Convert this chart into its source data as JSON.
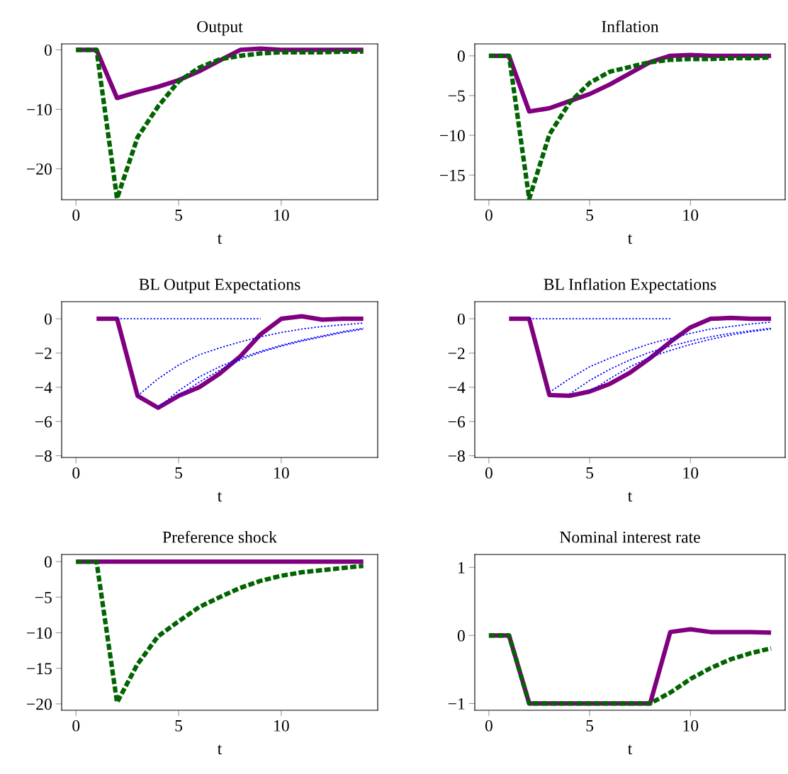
{
  "chart_data": [
    {
      "type": "line",
      "title": "Output",
      "xlabel": "t",
      "x": [
        0,
        1,
        2,
        3,
        4,
        5,
        6,
        7,
        8,
        9,
        10,
        11,
        12,
        13,
        14
      ],
      "xlim": [
        -0.7,
        14.7
      ],
      "xticks": [
        0,
        5,
        10
      ],
      "ylim": [
        -25.2,
        1
      ],
      "yticks": [
        {
          "value": 0,
          "label": "0"
        },
        {
          "value": -10,
          "label": "−10"
        },
        {
          "value": -20,
          "label": "−20"
        }
      ],
      "series": [
        {
          "color": "#800080",
          "line_style": "solid",
          "values": [
            0,
            0,
            -8.1,
            -7.1,
            -6.2,
            -5.1,
            -3.6,
            -1.8,
            0,
            0.2,
            0,
            0,
            0,
            0,
            0
          ]
        },
        {
          "color": "#006400",
          "line_style": "dashed",
          "values": [
            0,
            0,
            -25,
            -14.7,
            -9.5,
            -5.3,
            -3.0,
            -1.6,
            -1.0,
            -0.6,
            -0.4,
            -0.4,
            -0.4,
            -0.3,
            -0.3
          ]
        }
      ]
    },
    {
      "type": "line",
      "title": "Inflation",
      "xlabel": "t",
      "x": [
        0,
        1,
        2,
        3,
        4,
        5,
        6,
        7,
        8,
        9,
        10,
        11,
        12,
        13,
        14
      ],
      "xlim": [
        -0.7,
        14.7
      ],
      "xticks": [
        0,
        5,
        10
      ],
      "ylim": [
        -18.1,
        1.5
      ],
      "yticks": [
        {
          "value": 0,
          "label": "0"
        },
        {
          "value": -5,
          "label": "−5"
        },
        {
          "value": -10,
          "label": "−10"
        },
        {
          "value": -15,
          "label": "−15"
        }
      ],
      "series": [
        {
          "color": "#800080",
          "line_style": "solid",
          "values": [
            0,
            0,
            -7.0,
            -6.6,
            -5.7,
            -4.8,
            -3.6,
            -2.2,
            -0.8,
            0,
            0.1,
            0,
            0,
            0,
            0
          ]
        },
        {
          "color": "#006400",
          "line_style": "dashed",
          "values": [
            0,
            0,
            -18,
            -9.9,
            -5.9,
            -3.4,
            -2.0,
            -1.4,
            -0.8,
            -0.5,
            -0.4,
            -0.4,
            -0.3,
            -0.3,
            -0.2
          ]
        }
      ]
    },
    {
      "type": "line",
      "title": "BL Output Expectations",
      "xlabel": "t",
      "xlim": [
        -0.7,
        14.7
      ],
      "xticks": [
        0,
        5,
        10
      ],
      "ylim": [
        -8.1,
        1
      ],
      "yticks": [
        {
          "value": 0,
          "label": "0"
        },
        {
          "value": -2,
          "label": "−2"
        },
        {
          "value": -4,
          "label": "−4"
        },
        {
          "value": -6,
          "label": "−6"
        },
        {
          "value": -8,
          "label": "−8"
        }
      ],
      "series": [
        {
          "color": "#0000ff",
          "line_style": "dotted",
          "x": [
            2,
            3,
            4,
            5,
            6,
            7,
            8,
            9
          ],
          "values": [
            0,
            0,
            0,
            0,
            0,
            0,
            0,
            0
          ]
        },
        {
          "color": "#0000ff",
          "line_style": "dotted",
          "x": [
            3,
            4,
            5,
            6,
            7,
            8,
            9,
            10,
            11,
            12,
            13,
            14
          ],
          "values": [
            -4.5,
            -3.5,
            -2.7,
            -2.1,
            -1.7,
            -1.35,
            -1.05,
            -0.8,
            -0.6,
            -0.45,
            -0.35,
            -0.25
          ]
        },
        {
          "color": "#0000ff",
          "line_style": "dotted",
          "x": [
            4,
            5,
            6,
            7,
            8,
            9,
            10,
            11,
            12,
            13,
            14
          ],
          "values": [
            -5.2,
            -4.2,
            -3.4,
            -2.8,
            -2.3,
            -1.9,
            -1.55,
            -1.25,
            -1.0,
            -0.75,
            -0.55
          ]
        },
        {
          "color": "#0000ff",
          "line_style": "dotted",
          "x": [
            5,
            6,
            7,
            8,
            9,
            10,
            11,
            12,
            13,
            14
          ],
          "values": [
            -4.5,
            -3.7,
            -3.0,
            -2.4,
            -1.95,
            -1.6,
            -1.3,
            -1.05,
            -0.8,
            -0.6
          ]
        },
        {
          "color": "#800080",
          "line_style": "solid",
          "x": [
            1,
            2,
            3,
            4,
            5,
            6,
            7,
            8,
            9,
            10,
            11,
            12,
            13,
            14
          ],
          "values": [
            0,
            0,
            -4.5,
            -5.2,
            -4.5,
            -4.0,
            -3.2,
            -2.2,
            -0.9,
            0,
            0.15,
            -0.05,
            0,
            0
          ]
        }
      ]
    },
    {
      "type": "line",
      "title": "BL Inflation Expectations",
      "xlabel": "t",
      "xlim": [
        -0.7,
        14.7
      ],
      "xticks": [
        0,
        5,
        10
      ],
      "ylim": [
        -8.1,
        1
      ],
      "yticks": [
        {
          "value": 0,
          "label": "0"
        },
        {
          "value": -2,
          "label": "−2"
        },
        {
          "value": -4,
          "label": "−4"
        },
        {
          "value": -6,
          "label": "−6"
        },
        {
          "value": -8,
          "label": "−8"
        }
      ],
      "series": [
        {
          "color": "#0000ff",
          "line_style": "dotted",
          "x": [
            2,
            3,
            4,
            5,
            6,
            7,
            8,
            9
          ],
          "values": [
            0,
            0,
            0,
            0,
            0,
            0,
            0,
            0
          ]
        },
        {
          "color": "#0000ff",
          "line_style": "dotted",
          "x": [
            3,
            4,
            5,
            6,
            7,
            8,
            9,
            10,
            11,
            12,
            13,
            14
          ],
          "values": [
            -4.3,
            -3.5,
            -2.8,
            -2.3,
            -1.85,
            -1.45,
            -1.15,
            -0.85,
            -0.6,
            -0.45,
            -0.3,
            -0.2
          ]
        },
        {
          "color": "#0000ff",
          "line_style": "dotted",
          "x": [
            4,
            5,
            6,
            7,
            8,
            9,
            10,
            11,
            12,
            13,
            14
          ],
          "values": [
            -4.4,
            -3.6,
            -2.95,
            -2.4,
            -1.95,
            -1.6,
            -1.3,
            -1.05,
            -0.85,
            -0.7,
            -0.55
          ]
        },
        {
          "color": "#0000ff",
          "line_style": "dotted",
          "x": [
            5,
            6,
            7,
            8,
            9,
            10,
            11,
            12,
            13,
            14
          ],
          "values": [
            -4.25,
            -3.5,
            -2.8,
            -2.25,
            -1.85,
            -1.5,
            -1.2,
            -0.95,
            -0.75,
            -0.6
          ]
        },
        {
          "color": "#800080",
          "line_style": "solid",
          "x": [
            1,
            2,
            3,
            4,
            5,
            6,
            7,
            8,
            9,
            10,
            11,
            12,
            13,
            14
          ],
          "values": [
            0,
            0,
            -4.45,
            -4.5,
            -4.25,
            -3.8,
            -3.15,
            -2.3,
            -1.35,
            -0.5,
            0,
            0.05,
            0,
            0
          ]
        }
      ]
    },
    {
      "type": "line",
      "title": "Preference shock",
      "xlabel": "t",
      "x": [
        0,
        1,
        2,
        3,
        4,
        5,
        6,
        7,
        8,
        9,
        10,
        11,
        12,
        13,
        14
      ],
      "xlim": [
        -0.7,
        14.7
      ],
      "xticks": [
        0,
        5,
        10
      ],
      "ylim": [
        -20.9,
        1
      ],
      "yticks": [
        {
          "value": 0,
          "label": "0"
        },
        {
          "value": -5,
          "label": "−5"
        },
        {
          "value": -10,
          "label": "−10"
        },
        {
          "value": -15,
          "label": "−15"
        },
        {
          "value": -20,
          "label": "−20"
        }
      ],
      "series": [
        {
          "color": "#800080",
          "line_style": "solid",
          "values": [
            0,
            0,
            0,
            0,
            0,
            0,
            0,
            0,
            0,
            0,
            0,
            0,
            0,
            0,
            0
          ]
        },
        {
          "color": "#006400",
          "line_style": "dashed",
          "values": [
            0,
            0,
            -19.8,
            -14.4,
            -10.5,
            -8.4,
            -6.4,
            -5.0,
            -3.7,
            -2.7,
            -2.0,
            -1.5,
            -1.2,
            -0.9,
            -0.6
          ]
        }
      ]
    },
    {
      "type": "line",
      "title": "Nominal interest rate",
      "xlabel": "t",
      "x": [
        0,
        1,
        2,
        3,
        4,
        5,
        6,
        7,
        8,
        9,
        10,
        11,
        12,
        13,
        14
      ],
      "xlim": [
        -0.7,
        14.7
      ],
      "xticks": [
        0,
        5,
        10
      ],
      "ylim": [
        -1.1,
        1.19
      ],
      "yticks": [
        {
          "value": -1,
          "label": "−1"
        },
        0,
        1
      ],
      "series": [
        {
          "color": "#800080",
          "line_style": "solid",
          "values": [
            0,
            0,
            -1,
            -1,
            -1,
            -1,
            -1,
            -1,
            -1,
            0.05,
            0.09,
            0.05,
            0.05,
            0.05,
            0.04
          ]
        },
        {
          "color": "#006400",
          "line_style": "dashed",
          "values": [
            0,
            0,
            -1,
            -1,
            -1,
            -1,
            -1,
            -1,
            -1,
            -0.84,
            -0.64,
            -0.48,
            -0.35,
            -0.26,
            -0.19
          ]
        }
      ]
    }
  ]
}
